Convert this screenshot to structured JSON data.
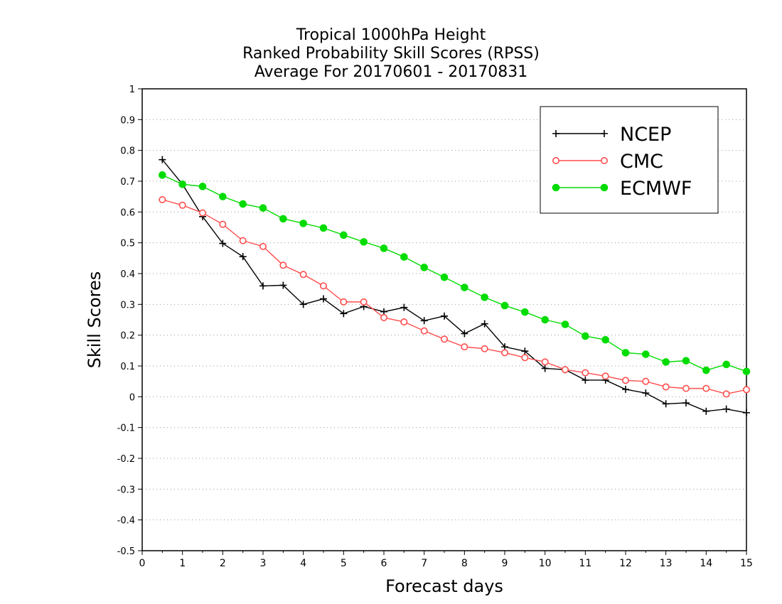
{
  "chart_data": {
    "type": "line",
    "title_lines": [
      "Tropical 1000hPa Height",
      "Ranked Probability Skill Scores (RPSS)",
      "Average For 20170601 - 20170831"
    ],
    "xlabel": "Forecast days",
    "ylabel": "Skill Scores",
    "xlim": [
      0,
      15
    ],
    "ylim": [
      -0.5,
      1
    ],
    "xticks": [
      "0",
      "1",
      "2",
      "3",
      "4",
      "5",
      "6",
      "7",
      "8",
      "9",
      "10",
      "11",
      "12",
      "13",
      "14",
      "15"
    ],
    "yticks": [
      "-0.5",
      "-0.4",
      "-0.3",
      "-0.2",
      "-0.1",
      "0",
      "0.1",
      "0.2",
      "0.3",
      "0.4",
      "0.5",
      "0.6",
      "0.7",
      "0.8",
      "0.9",
      "1"
    ],
    "grid": "horizontal dotted",
    "legend_position": "top-right",
    "x": [
      0.5,
      1,
      1.5,
      2,
      2.5,
      3,
      3.5,
      4,
      4.5,
      5,
      5.5,
      6,
      6.5,
      7,
      7.5,
      8,
      8.5,
      9,
      9.5,
      10,
      10.5,
      11,
      11.5,
      12,
      12.5,
      13,
      13.5,
      14,
      14.5,
      15
    ],
    "series": [
      {
        "name": "NCEP",
        "color": "#000000",
        "marker": "plus",
        "values": [
          0.77,
          0.69,
          0.585,
          0.498,
          0.455,
          0.36,
          0.362,
          0.3,
          0.318,
          0.27,
          0.293,
          0.276,
          0.29,
          0.247,
          0.262,
          0.205,
          0.237,
          0.162,
          0.148,
          0.092,
          0.088,
          0.054,
          0.054,
          0.024,
          0.012,
          -0.023,
          -0.02,
          -0.047,
          -0.04,
          -0.052
        ]
      },
      {
        "name": "CMC",
        "color": "#ff4d4d",
        "marker": "open-circle",
        "values": [
          0.64,
          0.622,
          0.597,
          0.56,
          0.507,
          0.488,
          0.427,
          0.397,
          0.36,
          0.308,
          0.308,
          0.257,
          0.243,
          0.214,
          0.187,
          0.162,
          0.156,
          0.143,
          0.127,
          0.113,
          0.088,
          0.078,
          0.067,
          0.053,
          0.05,
          0.032,
          0.027,
          0.027,
          0.009,
          0.023
        ]
      },
      {
        "name": "ECMWF",
        "color": "#00dc00",
        "marker": "filled-circle",
        "values": [
          0.72,
          0.69,
          0.683,
          0.65,
          0.626,
          0.613,
          0.578,
          0.563,
          0.548,
          0.525,
          0.503,
          0.482,
          0.454,
          0.42,
          0.388,
          0.355,
          0.323,
          0.296,
          0.275,
          0.25,
          0.235,
          0.197,
          0.185,
          0.143,
          0.138,
          0.113,
          0.117,
          0.086,
          0.105,
          0.082
        ]
      }
    ]
  }
}
